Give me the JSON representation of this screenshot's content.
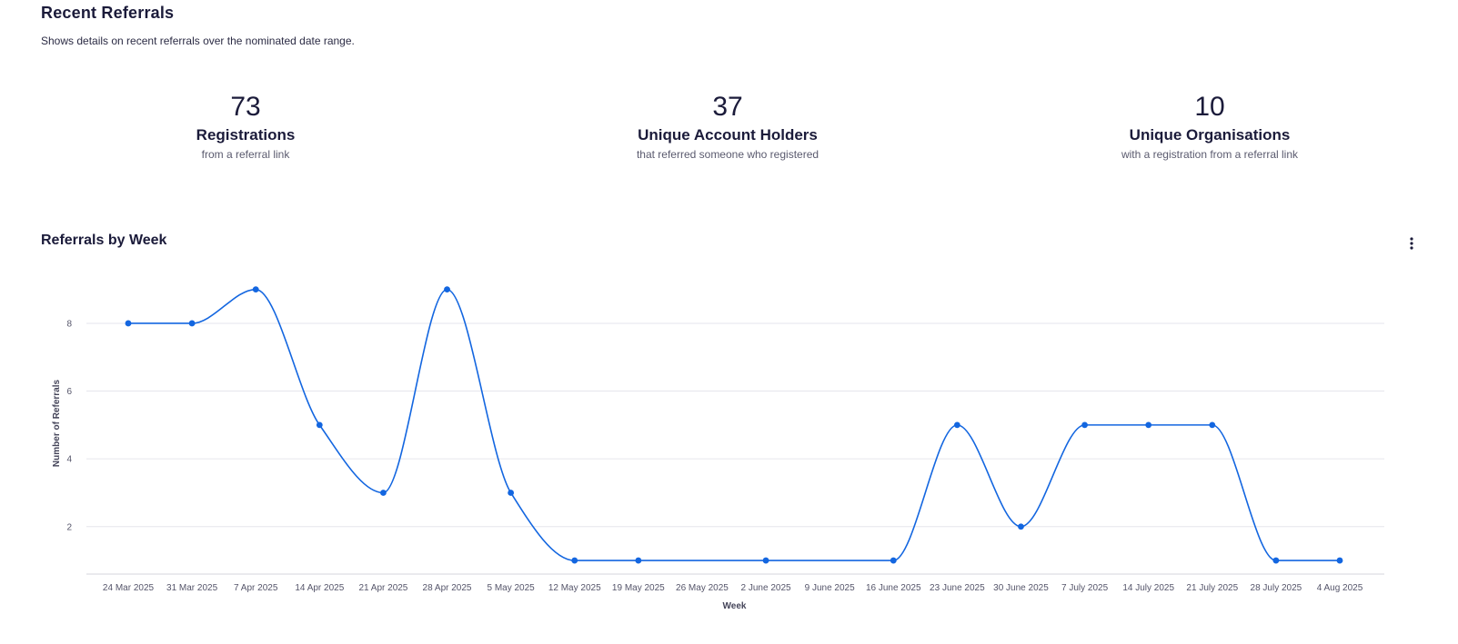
{
  "header": {
    "title": "Recent Referrals",
    "subtitle": "Shows details on recent referrals over the nominated date range."
  },
  "stats": [
    {
      "value": "73",
      "label": "Registrations",
      "desc": "from a referral link"
    },
    {
      "value": "37",
      "label": "Unique Account Holders",
      "desc": "that referred someone who registered"
    },
    {
      "value": "10",
      "label": "Unique Organisations",
      "desc": "with a registration from a referral link"
    }
  ],
  "chart": {
    "title": "Referrals by Week",
    "menu_icon": "more-vertical-icon"
  },
  "colors": {
    "line": "#1366e0",
    "grid": "#e6e6ec",
    "text": "#1b1b3a"
  },
  "chart_data": {
    "type": "line",
    "xlabel": "Week",
    "ylabel": "Number of Referrals",
    "categories": [
      "24 Mar 2025",
      "31 Mar 2025",
      "7 Apr 2025",
      "14 Apr 2025",
      "21 Apr 2025",
      "28 Apr 2025",
      "5 May 2025",
      "12 May 2025",
      "19 May 2025",
      "26 May 2025",
      "2 June 2025",
      "9 June 2025",
      "16 June 2025",
      "23 June 2025",
      "30 June 2025",
      "7 July 2025",
      "14 July 2025",
      "21 July 2025",
      "28 July 2025",
      "4 Aug 2025"
    ],
    "values": [
      8,
      8,
      9,
      5,
      3,
      9,
      3,
      1,
      1,
      null,
      1,
      null,
      1,
      5,
      2,
      5,
      5,
      5,
      1,
      1
    ],
    "yticks": [
      2,
      4,
      6,
      8
    ],
    "ylim": [
      0.6,
      9.5
    ],
    "grid": true,
    "legend": "none"
  }
}
